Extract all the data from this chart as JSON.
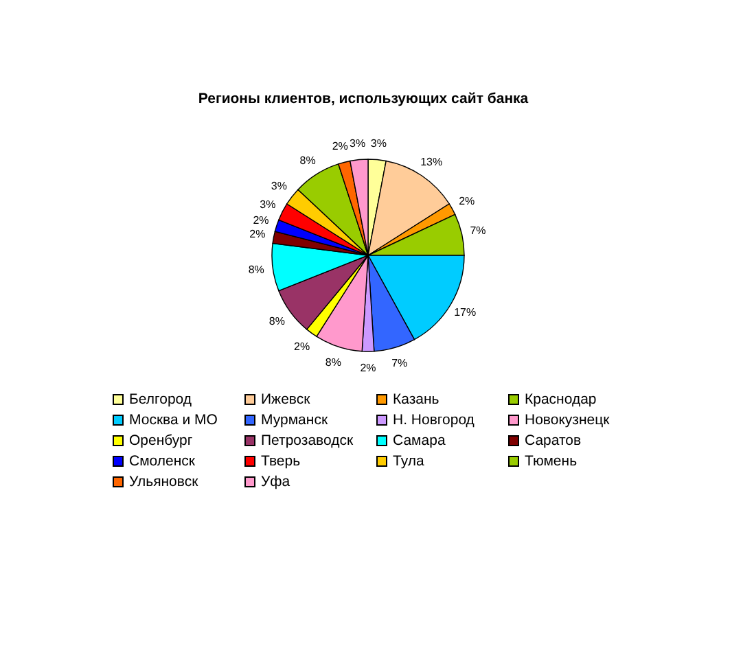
{
  "chart_data": {
    "type": "pie",
    "title": "Регионы клиентов, использующих сайт банка",
    "categories": [
      "Белгород",
      "Ижевск",
      "Казань",
      "Краснодар",
      "Москва и МО",
      "Мурманск",
      "Н. Новгород",
      "Новокузнецк",
      "Оренбург",
      "Петрозаводск",
      "Самара",
      "Саратов",
      "Смоленск",
      "Тверь",
      "Тула",
      "Тюмень",
      "Ульяновск",
      "Уфа"
    ],
    "values": [
      3,
      13,
      2,
      7,
      17,
      7,
      2,
      8,
      2,
      8,
      8,
      2,
      2,
      3,
      3,
      8,
      2,
      3
    ],
    "value_labels": [
      "3%",
      "13%",
      "2%",
      "7%",
      "17%",
      "7%",
      "2%",
      "8%",
      "2%",
      "8%",
      "8%",
      "2%",
      "2%",
      "3%",
      "3%",
      "8%",
      "2%",
      "3%"
    ],
    "colors": [
      "#ffff99",
      "#ffcc99",
      "#ff9900",
      "#99cc00",
      "#00ccff",
      "#3366ff",
      "#cc99ff",
      "#ff99cc",
      "#ffff00",
      "#993366",
      "#00ffff",
      "#800000",
      "#0000ff",
      "#ff0000",
      "#ffcc00",
      "#99cc00",
      "#ff6600",
      "#ff99cc"
    ],
    "legend": "bottom"
  }
}
